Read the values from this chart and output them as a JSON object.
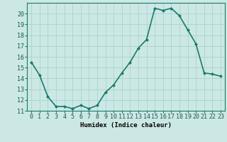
{
  "x": [
    0,
    1,
    2,
    3,
    4,
    5,
    6,
    7,
    8,
    9,
    10,
    11,
    12,
    13,
    14,
    15,
    16,
    17,
    18,
    19,
    20,
    21,
    22,
    23
  ],
  "y": [
    15.5,
    14.3,
    12.3,
    11.4,
    11.4,
    11.2,
    11.5,
    11.2,
    11.5,
    12.7,
    13.4,
    14.5,
    15.5,
    16.8,
    17.6,
    20.5,
    20.3,
    20.5,
    19.8,
    18.5,
    17.2,
    14.5,
    14.4,
    14.2
  ],
  "line_color": "#1a7a6e",
  "marker": "D",
  "marker_size": 2,
  "bg_color": "#cce8e4",
  "grid_color": "#a8d4ce",
  "xlabel": "Humidex (Indice chaleur)",
  "xlim": [
    -0.5,
    23.5
  ],
  "ylim": [
    11,
    21
  ],
  "yticks": [
    11,
    12,
    13,
    14,
    15,
    16,
    17,
    18,
    19,
    20
  ],
  "xticks": [
    0,
    1,
    2,
    3,
    4,
    5,
    6,
    7,
    8,
    9,
    10,
    11,
    12,
    13,
    14,
    15,
    16,
    17,
    18,
    19,
    20,
    21,
    22,
    23
  ],
  "xtick_labels": [
    "0",
    "1",
    "2",
    "3",
    "4",
    "5",
    "6",
    "7",
    "8",
    "9",
    "10",
    "11",
    "12",
    "13",
    "14",
    "15",
    "16",
    "17",
    "18",
    "19",
    "20",
    "21",
    "22",
    "23"
  ],
  "xlabel_fontsize": 6.5,
  "tick_fontsize": 6,
  "line_width": 1.2
}
